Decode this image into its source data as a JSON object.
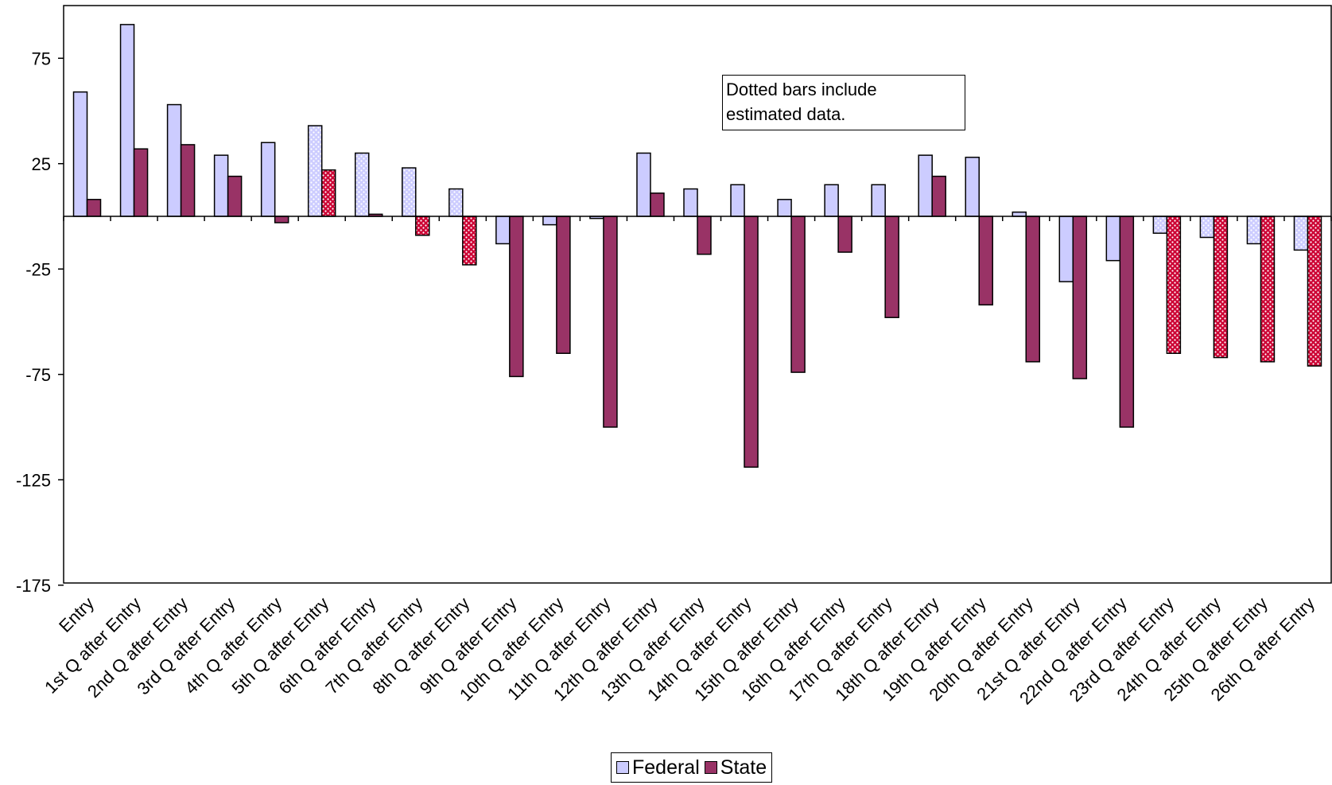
{
  "chart_data": {
    "type": "bar",
    "categories": [
      "Entry",
      "1st Q after Entry",
      "2nd Q after Entry",
      "3rd Q after Entry",
      "4th Q after Entry",
      "5th Q after Entry",
      "6th Q after Entry",
      "7th Q after Entry",
      "8th Q after Entry",
      "9th Q after Entry",
      "10th Q after Entry",
      "11th Q after Entry",
      "12th Q after Entry",
      "13th Q after Entry",
      "14th Q after Entry",
      "15th Q after Entry",
      "16th Q after Entry",
      "17th Q after Entry",
      "18th Q after Entry",
      "19th Q after Entry",
      "20th Q after Entry",
      "21st Q after Entry",
      "22nd Q after Entry",
      "23rd Q after Entry",
      "24th Q after Entry",
      "25th Q after Entry",
      "26th Q after Entry"
    ],
    "series": [
      {
        "name": "Federal",
        "color": "#ccccff",
        "values": [
          59,
          91,
          53,
          29,
          35,
          43,
          30,
          23,
          13,
          -13,
          -4,
          -1,
          30,
          13,
          15,
          8,
          15,
          15,
          29,
          28,
          2,
          -31,
          -21,
          -8,
          -10,
          -13,
          -16
        ],
        "estimated": [
          false,
          false,
          false,
          false,
          false,
          true,
          true,
          true,
          true,
          false,
          false,
          false,
          false,
          false,
          false,
          false,
          false,
          false,
          false,
          false,
          false,
          false,
          false,
          true,
          true,
          true,
          true
        ]
      },
      {
        "name": "State",
        "color": "#993366",
        "values": [
          8,
          32,
          34,
          19,
          -3,
          22,
          1,
          -9,
          -23,
          -76,
          -65,
          -100,
          11,
          -18,
          -119,
          -74,
          -17,
          -48,
          19,
          -42,
          -69,
          -77,
          -100,
          -65,
          -67,
          -69,
          -71
        ],
        "estimated": [
          false,
          false,
          false,
          false,
          false,
          true,
          false,
          true,
          true,
          false,
          false,
          false,
          false,
          false,
          false,
          false,
          false,
          false,
          false,
          false,
          false,
          false,
          false,
          true,
          true,
          true,
          true
        ]
      }
    ],
    "y_ticks": [
      "75",
      "25",
      "-25",
      "-75",
      "-125",
      "-175"
    ],
    "y_tick_values": [
      75,
      25,
      -25,
      -75,
      -125,
      -175
    ],
    "ylim": [
      -175,
      100
    ],
    "legend_position": "bottom",
    "annotation": [
      "Dotted bars include",
      "estimated data."
    ],
    "title": "",
    "xlabel": "",
    "ylabel": ""
  }
}
